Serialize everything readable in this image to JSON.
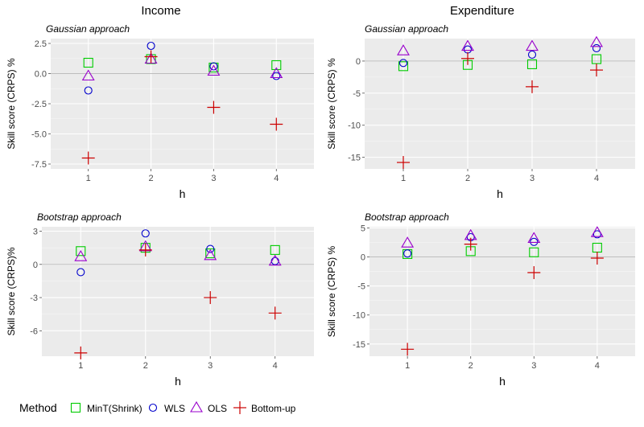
{
  "columns": {
    "left": "Income",
    "right": "Expenditure"
  },
  "legend": {
    "title": "Method",
    "items": [
      {
        "label": "MinT(Shrink)",
        "color": "#00cc00",
        "shape": "square"
      },
      {
        "label": "WLS",
        "color": "#0000cc",
        "shape": "circle"
      },
      {
        "label": "OLS",
        "color": "#9900cc",
        "shape": "triangle"
      },
      {
        "label": "Bottom-up",
        "color": "#cc0000",
        "shape": "plus"
      }
    ]
  },
  "chart_data": [
    {
      "type": "scatter",
      "column": "Income",
      "subtitle": "Gaussian approach",
      "xlabel": "h",
      "ylabel": "Skill score (CRPS) %",
      "x": [
        1,
        2,
        3,
        4
      ],
      "ylim": [
        -7.9,
        2.9
      ],
      "yticks": [
        2.5,
        0.0,
        -2.5,
        -5.0,
        -7.5
      ],
      "ytick_labels": [
        "2.5",
        "0.0",
        "-2.5",
        "-5.0",
        "-7.5"
      ],
      "series": [
        {
          "name": "MinT(Shrink)",
          "values": [
            0.9,
            1.2,
            0.5,
            0.7
          ]
        },
        {
          "name": "WLS",
          "values": [
            -1.4,
            2.3,
            0.6,
            -0.2
          ]
        },
        {
          "name": "OLS",
          "values": [
            -0.2,
            1.2,
            0.2,
            0.0
          ]
        },
        {
          "name": "Bottom-up",
          "values": [
            -7.0,
            1.4,
            -2.8,
            -4.2
          ]
        }
      ]
    },
    {
      "type": "scatter",
      "column": "Expenditure",
      "subtitle": "Gaussian approach",
      "xlabel": "h",
      "ylabel": "Skill score (CRPS) %",
      "x": [
        1,
        2,
        3,
        4
      ],
      "ylim": [
        -16.8,
        3.5
      ],
      "yticks": [
        0,
        -5,
        -10,
        -15
      ],
      "ytick_labels": [
        "0",
        "-5",
        "-10",
        "-15"
      ],
      "series": [
        {
          "name": "MinT(Shrink)",
          "values": [
            -0.8,
            -0.6,
            -0.5,
            0.3
          ]
        },
        {
          "name": "WLS",
          "values": [
            -0.3,
            1.8,
            1.0,
            2.0
          ]
        },
        {
          "name": "OLS",
          "values": [
            1.6,
            2.3,
            2.3,
            2.9
          ]
        },
        {
          "name": "Bottom-up",
          "values": [
            -15.8,
            0.4,
            -4.0,
            -1.4
          ]
        }
      ]
    },
    {
      "type": "scatter",
      "column": "Income",
      "subtitle": "Bootstrap approach",
      "xlabel": "h",
      "ylabel": "Skill score (CRPS)%",
      "x": [
        1,
        2,
        3,
        4
      ],
      "ylim": [
        -8.3,
        3.4
      ],
      "yticks": [
        3,
        0,
        -3,
        -6
      ],
      "ytick_labels": [
        "3",
        "0",
        "-3",
        "-6"
      ],
      "series": [
        {
          "name": "MinT(Shrink)",
          "values": [
            1.2,
            1.5,
            1.0,
            1.3
          ]
        },
        {
          "name": "WLS",
          "values": [
            -0.7,
            2.8,
            1.4,
            0.3
          ]
        },
        {
          "name": "OLS",
          "values": [
            0.7,
            1.6,
            0.8,
            0.3
          ]
        },
        {
          "name": "Bottom-up",
          "values": [
            -8.0,
            1.3,
            -3.0,
            -4.4
          ]
        }
      ]
    },
    {
      "type": "scatter",
      "column": "Expenditure",
      "subtitle": "Bootstrap approach",
      "xlabel": "h",
      "ylabel": "Skill score (CRPS) %",
      "x": [
        1,
        2,
        3,
        4
      ],
      "ylim": [
        -17.1,
        5.2
      ],
      "yticks": [
        5,
        0,
        -5,
        -10,
        -15
      ],
      "ytick_labels": [
        "5",
        "0",
        "-5",
        "-10",
        "-15"
      ],
      "series": [
        {
          "name": "MinT(Shrink)",
          "values": [
            0.5,
            1.0,
            0.8,
            1.6
          ]
        },
        {
          "name": "WLS",
          "values": [
            0.6,
            3.4,
            2.6,
            3.9
          ]
        },
        {
          "name": "OLS",
          "values": [
            2.4,
            3.7,
            3.2,
            4.2
          ]
        },
        {
          "name": "Bottom-up",
          "values": [
            -15.9,
            2.2,
            -2.7,
            -0.2
          ]
        }
      ]
    }
  ]
}
